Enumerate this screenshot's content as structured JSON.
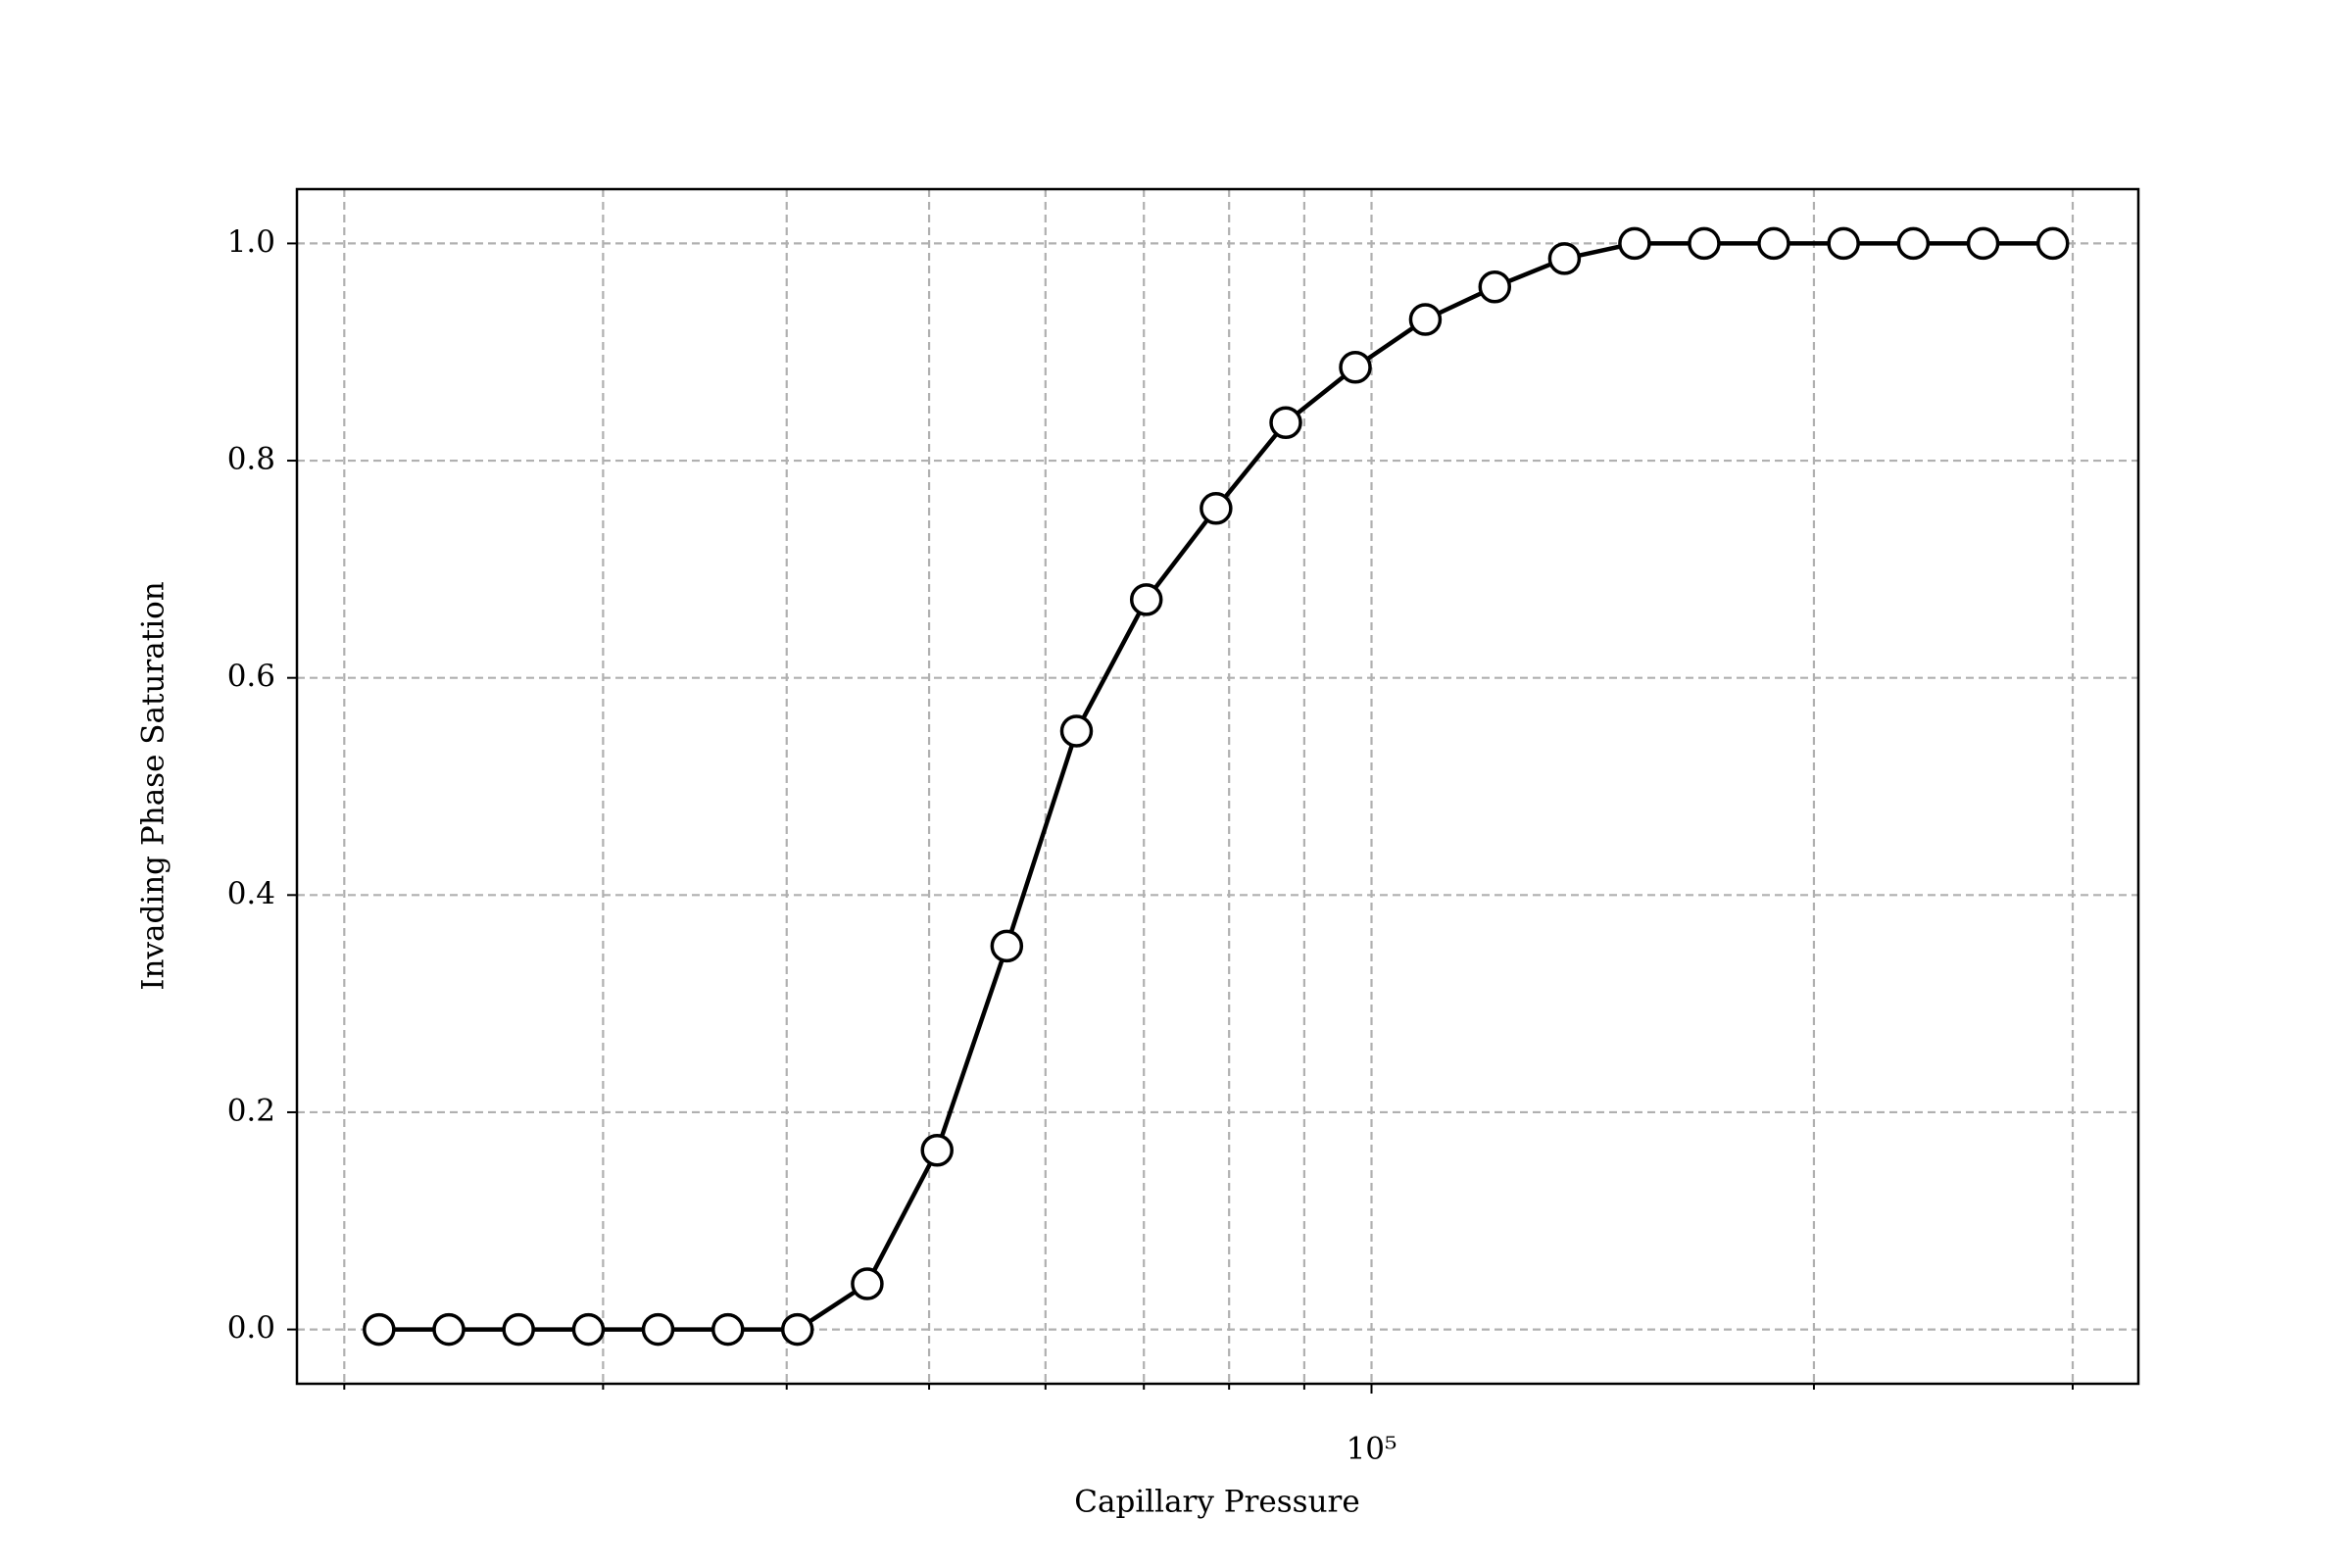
{
  "chart_data": {
    "type": "line",
    "xlabel": "Capillary Pressure",
    "ylabel": "Invading Phase Saturation",
    "x": [
      21120,
      23560,
      26280,
      29320,
      32700,
      36480,
      40680,
      45380,
      50630,
      56470,
      62990,
      70270,
      78380,
      87430,
      97500,
      108800,
      121300,
      135300,
      151000,
      168400,
      187800,
      209500,
      233700,
      260700,
      290800
    ],
    "series": [
      {
        "color": "#000000",
        "values": [
          0,
          0,
          0,
          0,
          0,
          0,
          0,
          0.042,
          0.165,
          0.353,
          0.551,
          0.672,
          0.756,
          0.835,
          0.886,
          0.93,
          0.96,
          0.986,
          1.0,
          1.0,
          1.0,
          1.0,
          1.0,
          1.0,
          1.0
        ]
      }
    ],
    "xscale": "log",
    "xlim": [
      18570,
      332500
    ],
    "xticks": [
      {
        "value": 100000,
        "label": "10⁵"
      }
    ],
    "xminorticks": [
      20000,
      30000,
      40000,
      50000,
      60000,
      70000,
      80000,
      90000,
      200000,
      300000
    ],
    "ylim": [
      -0.05,
      1.05
    ],
    "yticks": [
      {
        "value": 0,
        "label": "0.0"
      },
      0.2,
      0.4,
      0.6,
      0.8,
      {
        "value": 1,
        "label": "1.0"
      }
    ],
    "grid": true
  }
}
